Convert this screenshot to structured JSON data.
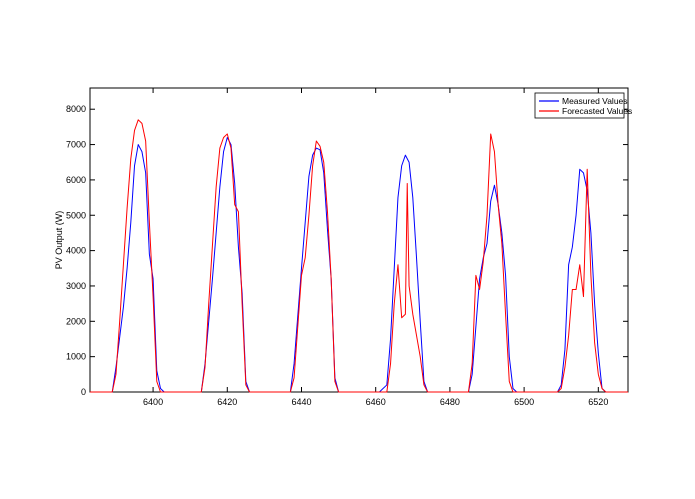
{
  "chart_data": {
    "type": "line",
    "title": "",
    "xlabel": "",
    "ylabel": "PV Output (W)",
    "xlim": [
      6383,
      6528
    ],
    "ylim": [
      0,
      8600
    ],
    "x_ticks": [
      6400,
      6420,
      6440,
      6460,
      6480,
      6500,
      6520
    ],
    "y_ticks": [
      0,
      1000,
      2000,
      3000,
      4000,
      5000,
      6000,
      7000,
      8000
    ],
    "grid": false,
    "legend_position": "top-right",
    "series": [
      {
        "name": "Measured Values",
        "color": "#0000ff",
        "points": [
          [
            6383,
            0
          ],
          [
            6389,
            0
          ],
          [
            6390,
            700
          ],
          [
            6392,
            2400
          ],
          [
            6393,
            3500
          ],
          [
            6394,
            4800
          ],
          [
            6395,
            6400
          ],
          [
            6396,
            7000
          ],
          [
            6397,
            6800
          ],
          [
            6398,
            6200
          ],
          [
            6399,
            3900
          ],
          [
            6400,
            3200
          ],
          [
            6401,
            600
          ],
          [
            6402,
            100
          ],
          [
            6403,
            0
          ],
          [
            6413,
            0
          ],
          [
            6414,
            800
          ],
          [
            6416,
            3200
          ],
          [
            6418,
            5800
          ],
          [
            6419,
            6800
          ],
          [
            6420,
            7200
          ],
          [
            6421,
            7000
          ],
          [
            6422,
            5900
          ],
          [
            6423,
            4100
          ],
          [
            6424,
            2800
          ],
          [
            6425,
            300
          ],
          [
            6426,
            0
          ],
          [
            6437,
            0
          ],
          [
            6438,
            800
          ],
          [
            6440,
            3500
          ],
          [
            6442,
            6100
          ],
          [
            6443,
            6700
          ],
          [
            6444,
            6900
          ],
          [
            6445,
            6850
          ],
          [
            6446,
            6200
          ],
          [
            6447,
            4600
          ],
          [
            6448,
            3200
          ],
          [
            6449,
            400
          ],
          [
            6450,
            0
          ],
          [
            6461,
            0
          ],
          [
            6463,
            200
          ],
          [
            6464,
            1500
          ],
          [
            6465,
            3500
          ],
          [
            6466,
            5500
          ],
          [
            6467,
            6400
          ],
          [
            6468,
            6700
          ],
          [
            6469,
            6500
          ],
          [
            6470,
            5500
          ],
          [
            6471,
            3800
          ],
          [
            6472,
            2000
          ],
          [
            6473,
            300
          ],
          [
            6474,
            0
          ],
          [
            6485,
            0
          ],
          [
            6486,
            500
          ],
          [
            6488,
            3200
          ],
          [
            6489,
            3800
          ],
          [
            6490,
            4200
          ],
          [
            6491,
            5400
          ],
          [
            6492,
            5850
          ],
          [
            6493,
            5300
          ],
          [
            6494,
            4500
          ],
          [
            6495,
            3300
          ],
          [
            6496,
            1000
          ],
          [
            6497,
            100
          ],
          [
            6498,
            0
          ],
          [
            6509,
            0
          ],
          [
            6510,
            200
          ],
          [
            6511,
            1200
          ],
          [
            6512,
            3600
          ],
          [
            6513,
            4100
          ],
          [
            6514,
            5000
          ],
          [
            6515,
            6300
          ],
          [
            6516,
            6200
          ],
          [
            6517,
            5700
          ],
          [
            6518,
            4500
          ],
          [
            6519,
            2500
          ],
          [
            6520,
            1100
          ],
          [
            6521,
            100
          ],
          [
            6522,
            0
          ],
          [
            6528,
            0
          ]
        ]
      },
      {
        "name": "Forecasted Values",
        "color": "#ff0000",
        "points": [
          [
            6383,
            0
          ],
          [
            6389,
            0
          ],
          [
            6390,
            500
          ],
          [
            6391,
            2000
          ],
          [
            6392,
            3600
          ],
          [
            6393,
            5200
          ],
          [
            6394,
            6600
          ],
          [
            6395,
            7400
          ],
          [
            6396,
            7700
          ],
          [
            6397,
            7600
          ],
          [
            6398,
            7100
          ],
          [
            6399,
            4800
          ],
          [
            6400,
            2700
          ],
          [
            6401,
            300
          ],
          [
            6402,
            0
          ],
          [
            6413,
            0
          ],
          [
            6414,
            700
          ],
          [
            6415,
            2500
          ],
          [
            6417,
            5800
          ],
          [
            6418,
            6900
          ],
          [
            6419,
            7200
          ],
          [
            6420,
            7300
          ],
          [
            6421,
            6900
          ],
          [
            6422,
            5300
          ],
          [
            6423,
            5100
          ],
          [
            6424,
            2500
          ],
          [
            6425,
            200
          ],
          [
            6426,
            0
          ],
          [
            6437,
            0
          ],
          [
            6438,
            400
          ],
          [
            6440,
            3300
          ],
          [
            6441,
            3800
          ],
          [
            6442,
            5000
          ],
          [
            6443,
            6400
          ],
          [
            6444,
            7100
          ],
          [
            6445,
            6950
          ],
          [
            6446,
            6500
          ],
          [
            6447,
            5100
          ],
          [
            6448,
            3200
          ],
          [
            6449,
            300
          ],
          [
            6450,
            0
          ],
          [
            6463,
            0
          ],
          [
            6464,
            800
          ],
          [
            6465,
            2500
          ],
          [
            6466,
            3600
          ],
          [
            6467,
            2100
          ],
          [
            6468,
            2200
          ],
          [
            6468.5,
            5900
          ],
          [
            6469,
            3000
          ],
          [
            6470,
            2200
          ],
          [
            6471,
            1600
          ],
          [
            6472,
            1000
          ],
          [
            6473,
            200
          ],
          [
            6474,
            0
          ],
          [
            6485,
            0
          ],
          [
            6486,
            800
          ],
          [
            6487,
            3300
          ],
          [
            6488,
            2900
          ],
          [
            6489,
            3700
          ],
          [
            6490,
            5000
          ],
          [
            6491,
            7300
          ],
          [
            6492,
            6800
          ],
          [
            6493,
            5300
          ],
          [
            6494,
            4200
          ],
          [
            6495,
            2200
          ],
          [
            6496,
            300
          ],
          [
            6497,
            0
          ],
          [
            6509,
            0
          ],
          [
            6510,
            100
          ],
          [
            6511,
            700
          ],
          [
            6512,
            1600
          ],
          [
            6513,
            2900
          ],
          [
            6514,
            2900
          ],
          [
            6515,
            3600
          ],
          [
            6516,
            2700
          ],
          [
            6517,
            6300
          ],
          [
            6518,
            3300
          ],
          [
            6519,
            1400
          ],
          [
            6520,
            500
          ],
          [
            6521,
            100
          ],
          [
            6522,
            0
          ],
          [
            6528,
            0
          ]
        ]
      }
    ]
  }
}
